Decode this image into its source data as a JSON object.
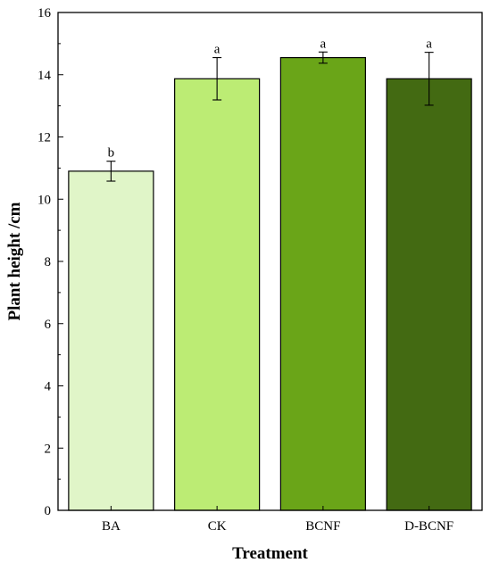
{
  "chart_data": {
    "type": "bar",
    "categories": [
      "BA",
      "CK",
      "BCNF",
      "D-BCNF"
    ],
    "values": [
      10.9,
      13.87,
      14.55,
      13.87
    ],
    "errors": [
      0.32,
      0.68,
      0.18,
      0.85
    ],
    "significance": [
      "b",
      "a",
      "a",
      "a"
    ],
    "colors": [
      "#e0f5c8",
      "#bcec74",
      "#6aa518",
      "#436a12"
    ],
    "xlabel": "Treatment",
    "ylabel": "Plant height /cm",
    "ylim": [
      0,
      16
    ],
    "yticks": [
      0,
      2,
      4,
      6,
      8,
      10,
      12,
      14,
      16
    ],
    "grid": false,
    "legend": "none"
  }
}
